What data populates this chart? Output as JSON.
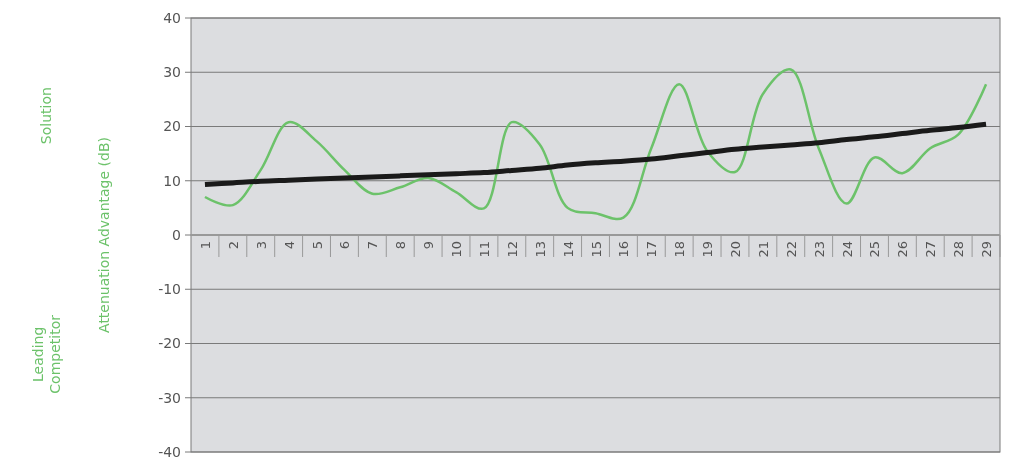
{
  "chart_data": {
    "type": "line",
    "ylabel": "Attenuation Advantage (dB)",
    "annotations": [
      "Solution",
      "Leading Competitor"
    ],
    "categories": [
      "1",
      "2",
      "3",
      "4",
      "5",
      "6",
      "7",
      "8",
      "9",
      "10",
      "11",
      "12",
      "13",
      "14",
      "15",
      "16",
      "17",
      "18",
      "19",
      "20",
      "21",
      "22",
      "23",
      "24",
      "25",
      "26",
      "27",
      "28",
      "29"
    ],
    "series": [
      {
        "color": "#6cc26a",
        "values": [
          7,
          5.5,
          12,
          20.8,
          17.3,
          12,
          7.6,
          8.8,
          10.5,
          7.9,
          4.9,
          20.8,
          16.7,
          5,
          4,
          3.2,
          16,
          27.8,
          15.5,
          11.6,
          26,
          30.5,
          16,
          5.8,
          14.3,
          11.4,
          16,
          18.5,
          27.8
        ]
      },
      {
        "color": "#1a1a1a",
        "values": [
          9.3,
          9.6,
          9.9,
          10.1,
          10.3,
          10.5,
          10.7,
          10.9,
          11.1,
          11.3,
          11.5,
          11.9,
          12.3,
          12.9,
          13.3,
          13.6,
          14,
          14.6,
          15.2,
          15.8,
          16.2,
          16.6,
          17,
          17.6,
          18.1,
          18.7,
          19.3,
          19.8,
          20.4
        ]
      }
    ],
    "ylim": [
      -40,
      40
    ],
    "yticks": [
      -40,
      -30,
      -20,
      -10,
      0,
      10,
      20,
      30,
      40
    ],
    "grid": "y",
    "marker": "none",
    "line_style": "solid"
  }
}
